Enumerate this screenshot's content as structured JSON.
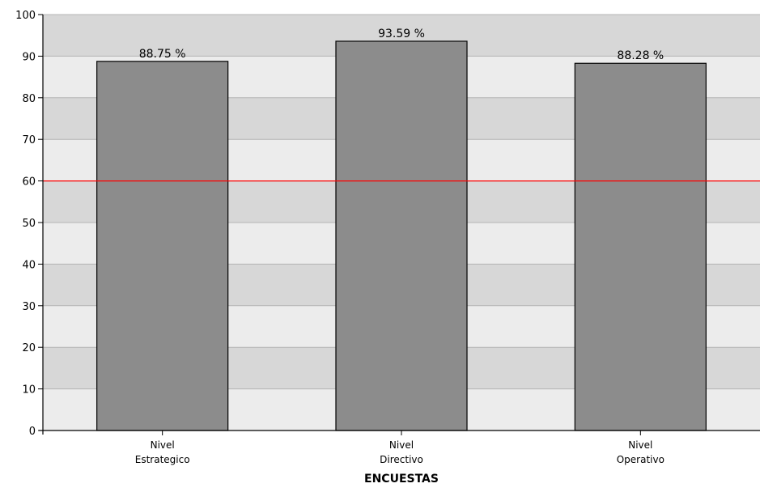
{
  "chart_data": {
    "type": "bar",
    "title": "",
    "xlabel": "ENCUESTAS",
    "ylabel": "",
    "ylim": [
      0,
      100
    ],
    "yticks": [
      0,
      10,
      20,
      30,
      40,
      50,
      60,
      70,
      80,
      90,
      100
    ],
    "grid": "horizontal alternating bands",
    "categories": [
      [
        "Nivel",
        "Estrategico"
      ],
      [
        "Nivel",
        "Directivo"
      ],
      [
        "Nivel",
        "Operativo"
      ]
    ],
    "values": [
      88.75,
      93.59,
      88.28
    ],
    "data_labels": [
      "88.75 %",
      "93.59 %",
      "88.28 %"
    ],
    "reference_line": {
      "value": 60,
      "color": "#ff0000"
    },
    "colors": {
      "bar_fill": "#8c8c8c",
      "bar_stroke": "#000000",
      "band_light": "#ececec",
      "band_dark": "#d7d7d7",
      "gridline": "#b4b4b4",
      "axis": "#000000"
    }
  }
}
